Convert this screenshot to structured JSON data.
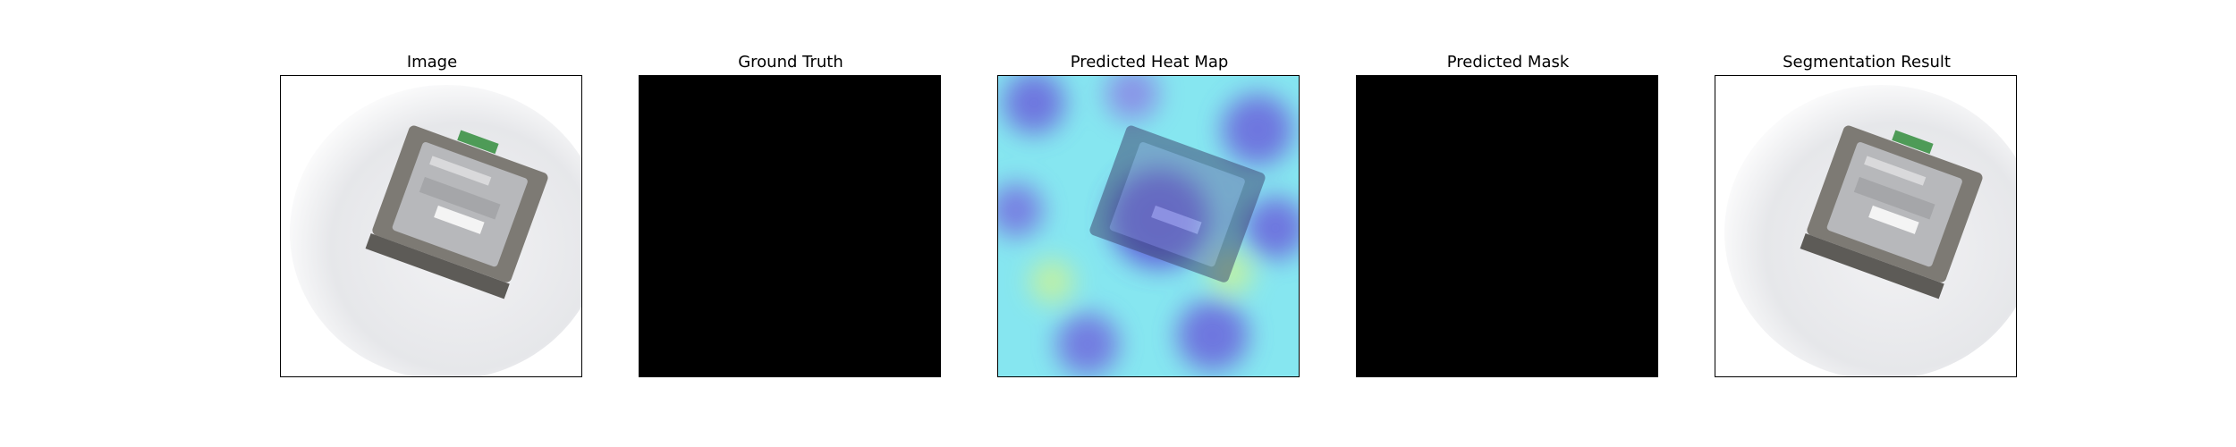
{
  "panels": [
    {
      "title": "Image",
      "kind": "photo"
    },
    {
      "title": "Ground Truth",
      "kind": "mask-empty"
    },
    {
      "title": "Predicted Heat Map",
      "kind": "heatmap"
    },
    {
      "title": "Predicted Mask",
      "kind": "mask-empty"
    },
    {
      "title": "Segmentation Result",
      "kind": "photo"
    }
  ],
  "colors": {
    "background": "#ffffff",
    "mask": "#000000",
    "heat_low": "#7fe8ee",
    "heat_high": "#5b4fd9"
  }
}
